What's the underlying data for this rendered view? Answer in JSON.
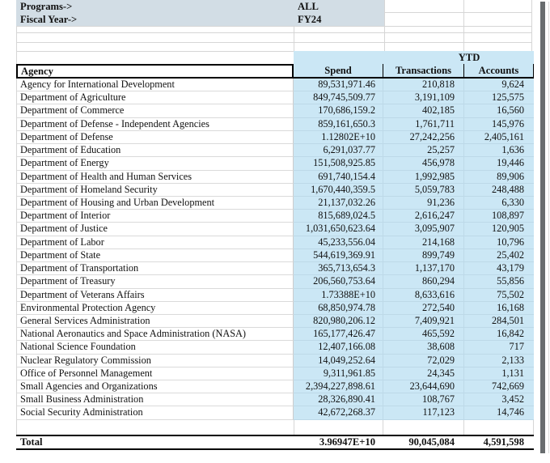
{
  "filters": {
    "programs_label": "Programs->",
    "programs_value": "ALL",
    "fiscal_label": "Fiscal Year->",
    "fiscal_value": "FY24"
  },
  "table": {
    "group_header": "YTD",
    "columns": [
      "Agency",
      "Spend",
      "Transactions",
      "Accounts"
    ],
    "rows": [
      {
        "agency": "Agency for International Development",
        "spend": "89,531,971.46",
        "transactions": "210,818",
        "accounts": "9,624"
      },
      {
        "agency": "Department of Agriculture",
        "spend": "849,745,509.77",
        "transactions": "3,191,109",
        "accounts": "125,575"
      },
      {
        "agency": "Department of Commerce",
        "spend": "170,686,159.2",
        "transactions": "402,185",
        "accounts": "16,560"
      },
      {
        "agency": "Department of Defense - Independent Agencies",
        "spend": "859,161,650.3",
        "transactions": "1,761,711",
        "accounts": "145,976"
      },
      {
        "agency": "Department of Defense",
        "spend": "1.12802E+10",
        "transactions": "27,242,256",
        "accounts": "2,405,161"
      },
      {
        "agency": "Department of Education",
        "spend": "6,291,037.77",
        "transactions": "25,257",
        "accounts": "1,636"
      },
      {
        "agency": "Department of Energy",
        "spend": "151,508,925.85",
        "transactions": "456,978",
        "accounts": "19,446"
      },
      {
        "agency": "Department of Health and Human Services",
        "spend": "691,740,154.4",
        "transactions": "1,992,985",
        "accounts": "89,906"
      },
      {
        "agency": "Department of Homeland Security",
        "spend": "1,670,440,359.5",
        "transactions": "5,059,783",
        "accounts": "248,488"
      },
      {
        "agency": "Department of Housing and Urban Development",
        "spend": "21,137,032.26",
        "transactions": "91,236",
        "accounts": "6,330"
      },
      {
        "agency": "Department of Interior",
        "spend": "815,689,024.5",
        "transactions": "2,616,247",
        "accounts": "108,897"
      },
      {
        "agency": "Department of Justice",
        "spend": "1,031,650,623.64",
        "transactions": "3,095,907",
        "accounts": "120,905"
      },
      {
        "agency": "Department of Labor",
        "spend": "45,233,556.04",
        "transactions": "214,168",
        "accounts": "10,796"
      },
      {
        "agency": "Department of State",
        "spend": "544,619,369.91",
        "transactions": "899,749",
        "accounts": "25,402"
      },
      {
        "agency": "Department of Transportation",
        "spend": "365,713,654.3",
        "transactions": "1,137,170",
        "accounts": "43,179"
      },
      {
        "agency": "Department of Treasury",
        "spend": "206,560,753.64",
        "transactions": "860,294",
        "accounts": "55,856"
      },
      {
        "agency": "Department of Veterans Affairs",
        "spend": "1.73388E+10",
        "transactions": "8,633,616",
        "accounts": "75,502"
      },
      {
        "agency": "Environmental Protection Agency",
        "spend": "68,850,974.78",
        "transactions": "272,540",
        "accounts": "16,168"
      },
      {
        "agency": "General Services Administration",
        "spend": "820,980,206.12",
        "transactions": "7,409,921",
        "accounts": "284,501"
      },
      {
        "agency": "National Aeronautics and Space Administration (NASA)",
        "spend": "165,177,426.47",
        "transactions": "465,592",
        "accounts": "16,842"
      },
      {
        "agency": "National Science Foundation",
        "spend": "12,407,166.08",
        "transactions": "38,608",
        "accounts": "717"
      },
      {
        "agency": "Nuclear Regulatory Commission",
        "spend": "14,049,252.64",
        "transactions": "72,029",
        "accounts": "2,133"
      },
      {
        "agency": "Office of Personnel Management",
        "spend": "9,311,961.85",
        "transactions": "24,345",
        "accounts": "1,131"
      },
      {
        "agency": "Small Agencies and Organizations",
        "spend": "2,394,227,898.61",
        "transactions": "23,644,690",
        "accounts": "742,669"
      },
      {
        "agency": "Small Business Administration",
        "spend": "28,326,890.41",
        "transactions": "108,767",
        "accounts": "3,452"
      },
      {
        "agency": "Social Security Administration",
        "spend": "42,672,268.37",
        "transactions": "117,123",
        "accounts": "14,746"
      }
    ],
    "total": {
      "label": "Total",
      "spend": "3.96947E+10",
      "transactions": "90,045,084",
      "accounts": "4,591,598"
    }
  },
  "colors": {
    "filter_bg": "#d2dde5",
    "data_bg": "#cbe7f5",
    "split_bar": "#696d6f",
    "gridline": "#d6d6d6"
  }
}
